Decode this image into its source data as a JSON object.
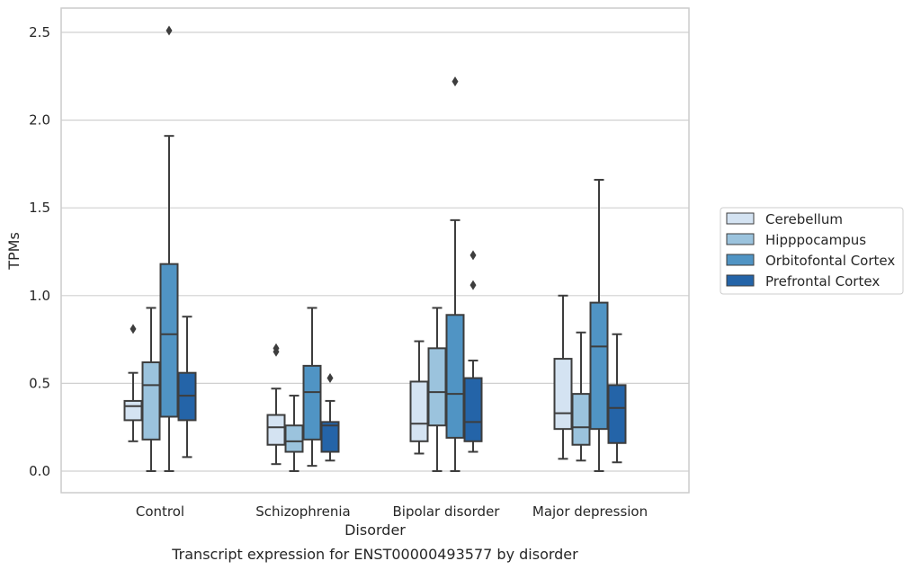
{
  "chart_data": {
    "type": "box",
    "title": "",
    "caption": "Transcript expression for ENST00000493577 by disorder",
    "xlabel": "Disorder",
    "ylabel": "TPMs",
    "ylim": [
      -0.12,
      2.65
    ],
    "yticks": [
      "0.0",
      "0.5",
      "1.0",
      "1.5",
      "2.0",
      "2.5"
    ],
    "ytick_values": [
      0,
      0.5,
      1.0,
      1.5,
      2.0,
      2.5
    ],
    "grid": true,
    "legend_position": "right-center",
    "categories": [
      "Control",
      "Schizophrenia",
      "Bipolar disorder",
      "Major depression"
    ],
    "series": [
      {
        "name": "Cerebellum",
        "color": "#d4e3f2",
        "boxes": [
          {
            "whislo": 0.17,
            "q1": 0.29,
            "med": 0.37,
            "q3": 0.4,
            "whishi": 0.56,
            "fliers": [
              0.81
            ]
          },
          {
            "whislo": 0.04,
            "q1": 0.15,
            "med": 0.25,
            "q3": 0.32,
            "whishi": 0.47,
            "fliers": [
              0.68,
              0.7
            ]
          },
          {
            "whislo": 0.1,
            "q1": 0.17,
            "med": 0.27,
            "q3": 0.51,
            "whishi": 0.74,
            "fliers": []
          },
          {
            "whislo": 0.07,
            "q1": 0.24,
            "med": 0.33,
            "q3": 0.64,
            "whishi": 1.0,
            "fliers": []
          }
        ]
      },
      {
        "name": "Hipppocampus",
        "color": "#9bc3dd",
        "boxes": [
          {
            "whislo": 0.0,
            "q1": 0.18,
            "med": 0.49,
            "q3": 0.62,
            "whishi": 0.93,
            "fliers": []
          },
          {
            "whislo": 0.0,
            "q1": 0.11,
            "med": 0.17,
            "q3": 0.26,
            "whishi": 0.43,
            "fliers": []
          },
          {
            "whislo": 0.0,
            "q1": 0.26,
            "med": 0.45,
            "q3": 0.7,
            "whishi": 0.93,
            "fliers": []
          },
          {
            "whislo": 0.06,
            "q1": 0.15,
            "med": 0.25,
            "q3": 0.44,
            "whishi": 0.79,
            "fliers": []
          }
        ]
      },
      {
        "name": "Orbitofontal Cortex",
        "color": "#5094c4",
        "boxes": [
          {
            "whislo": 0.0,
            "q1": 0.31,
            "med": 0.78,
            "q3": 1.18,
            "whishi": 1.91,
            "fliers": [
              2.51
            ]
          },
          {
            "whislo": 0.03,
            "q1": 0.18,
            "med": 0.45,
            "q3": 0.6,
            "whishi": 0.93,
            "fliers": []
          },
          {
            "whislo": 0.0,
            "q1": 0.19,
            "med": 0.44,
            "q3": 0.89,
            "whishi": 1.43,
            "fliers": [
              2.22
            ]
          },
          {
            "whislo": 0.0,
            "q1": 0.24,
            "med": 0.71,
            "q3": 0.96,
            "whishi": 1.66,
            "fliers": []
          }
        ]
      },
      {
        "name": "Prefrontal Cortex",
        "color": "#2464a8",
        "boxes": [
          {
            "whislo": 0.08,
            "q1": 0.29,
            "med": 0.43,
            "q3": 0.56,
            "whishi": 0.88,
            "fliers": []
          },
          {
            "whislo": 0.06,
            "q1": 0.11,
            "med": 0.26,
            "q3": 0.28,
            "whishi": 0.4,
            "fliers": [
              0.53
            ]
          },
          {
            "whislo": 0.11,
            "q1": 0.17,
            "med": 0.28,
            "q3": 0.53,
            "whishi": 0.63,
            "fliers": [
              1.06,
              1.23
            ]
          },
          {
            "whislo": 0.05,
            "q1": 0.16,
            "med": 0.36,
            "q3": 0.49,
            "whishi": 0.78,
            "fliers": []
          }
        ]
      }
    ]
  }
}
